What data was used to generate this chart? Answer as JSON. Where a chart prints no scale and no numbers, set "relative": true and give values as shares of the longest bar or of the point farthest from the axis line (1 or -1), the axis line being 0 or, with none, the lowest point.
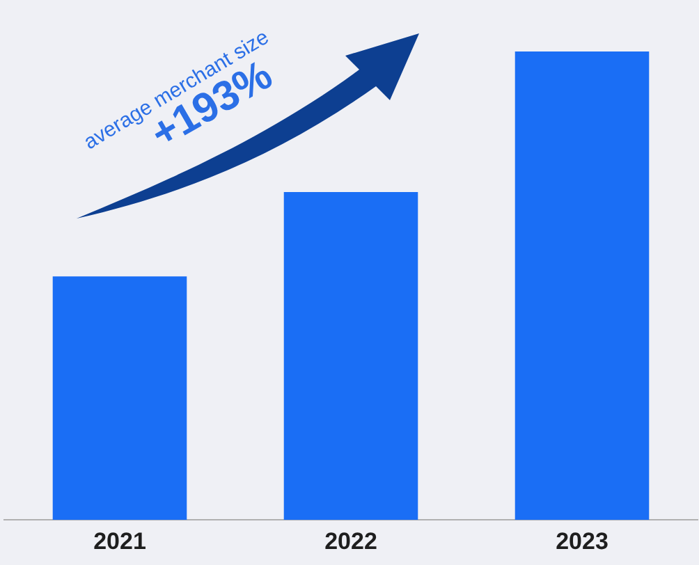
{
  "chart_data": {
    "type": "bar",
    "relative": true,
    "categories": [
      "2021",
      "2022",
      "2023"
    ],
    "values": [
      0.52,
      0.7,
      1
    ],
    "color": "#1a6ef5",
    "grid": false,
    "legend": false,
    "annotations": [
      "average merchant size",
      "+193%"
    ]
  }
}
